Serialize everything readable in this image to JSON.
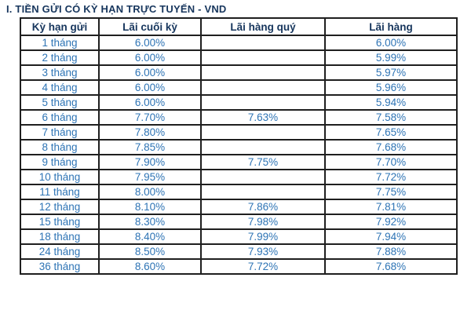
{
  "page": {
    "title": "I. TIỀN GỬI CÓ KỲ HẠN TRỰC TUYẾN - VND"
  },
  "colors": {
    "title_text": "#17365D",
    "header_text": "#17365D",
    "cell_text": "#2E74B5",
    "table_border": "#1f1f1f",
    "background": "#ffffff"
  },
  "table": {
    "headers": [
      "Kỳ hạn gửi",
      "Lãi cuối kỳ",
      "Lãi hàng quý",
      "Lãi hàng"
    ],
    "rows": [
      [
        "1 tháng",
        "6.00%",
        "",
        "6.00%"
      ],
      [
        "2 tháng",
        "6.00%",
        "",
        "5.99%"
      ],
      [
        "3 tháng",
        "6.00%",
        "",
        "5.97%"
      ],
      [
        "4 tháng",
        "6.00%",
        "",
        "5.96%"
      ],
      [
        "5 tháng",
        "6.00%",
        "",
        "5.94%"
      ],
      [
        "6 tháng",
        "7.70%",
        "7.63%",
        "7.58%"
      ],
      [
        "7 tháng",
        "7.80%",
        "",
        "7.65%"
      ],
      [
        "8 tháng",
        "7.85%",
        "",
        "7.68%"
      ],
      [
        "9 tháng",
        "7.90%",
        "7.75%",
        "7.70%"
      ],
      [
        "10 tháng",
        "7.95%",
        "",
        "7.72%"
      ],
      [
        "11 tháng",
        "8.00%",
        "",
        "7.75%"
      ],
      [
        "12 tháng",
        "8.10%",
        "7.86%",
        "7.81%"
      ],
      [
        "15 tháng",
        "8.30%",
        "7.98%",
        "7.92%"
      ],
      [
        "18 tháng",
        "8.40%",
        "7.99%",
        "7.94%"
      ],
      [
        "24 tháng",
        "8.50%",
        "7.93%",
        "7.88%"
      ],
      [
        "36 tháng",
        "8.60%",
        "7.72%",
        "7.68%"
      ]
    ]
  }
}
